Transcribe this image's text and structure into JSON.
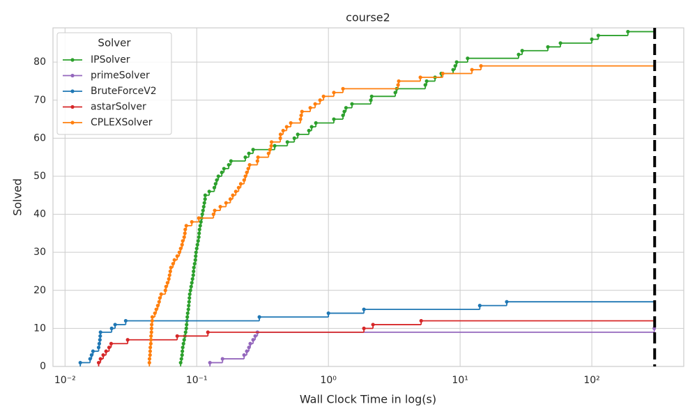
{
  "chart_data": {
    "type": "step",
    "title": "course2",
    "x_label": "Wall Clock Time in log(s)",
    "y_label": "Solved",
    "x_scale": "log",
    "grid": true,
    "legend_title": "Solver",
    "legend_loc": "upper-left",
    "xlim": [
      0.0081,
      499
    ],
    "ylim": [
      0,
      89
    ],
    "xticks": [
      {
        "value": 0.01,
        "label": "10⁻²"
      },
      {
        "value": 0.1,
        "label": "10⁻¹"
      },
      {
        "value": 1,
        "label": "10⁰"
      },
      {
        "value": 10,
        "label": "10¹"
      },
      {
        "value": 100,
        "label": "10²"
      }
    ],
    "yticks": [
      0,
      10,
      20,
      30,
      40,
      50,
      60,
      70,
      80
    ],
    "vline": {
      "x": 300,
      "color": "#000000"
    },
    "series": [
      {
        "name": "IPSolver",
        "color": "#2ca02c",
        "x": [
          0.0755,
          0.0765,
          0.0774,
          0.0778,
          0.0783,
          0.0793,
          0.0803,
          0.0813,
          0.0823,
          0.0833,
          0.0838,
          0.0843,
          0.0848,
          0.0854,
          0.0864,
          0.0869,
          0.0875,
          0.088,
          0.0885,
          0.0896,
          0.0907,
          0.0918,
          0.0929,
          0.0941,
          0.0946,
          0.0952,
          0.0964,
          0.0976,
          0.0982,
          0.0988,
          0.1,
          0.1012,
          0.1025,
          0.1037,
          0.1043,
          0.105,
          0.1063,
          0.1076,
          0.1089,
          0.1102,
          0.1116,
          0.113,
          0.1143,
          0.1157,
          0.116,
          0.1245,
          0.136,
          0.139,
          0.142,
          0.146,
          0.155,
          0.161,
          0.175,
          0.182,
          0.234,
          0.249,
          0.268,
          0.391,
          0.488,
          0.551,
          0.585,
          0.711,
          0.746,
          0.803,
          1.1,
          1.29,
          1.32,
          1.36,
          1.51,
          2.1,
          2.13,
          3.22,
          3.3,
          5.44,
          5.57,
          6.45,
          7.19,
          8.85,
          9.18,
          9.41,
          11.4,
          27.8,
          29.6,
          46.4,
          57.8,
          100,
          112,
          188
        ],
        "values": [
          1,
          2,
          3,
          4,
          5,
          6,
          7,
          8,
          9,
          10,
          11,
          12,
          13,
          14,
          15,
          16,
          17,
          18,
          19,
          20,
          21,
          22,
          23,
          24,
          25,
          26,
          27,
          28,
          29,
          30,
          31,
          32,
          33,
          34,
          35,
          36,
          37,
          38,
          39,
          40,
          41,
          42,
          43,
          44,
          45,
          46,
          47,
          48,
          49,
          50,
          51,
          52,
          53,
          54,
          55,
          56,
          57,
          58,
          59,
          60,
          61,
          62,
          63,
          64,
          65,
          66,
          67,
          68,
          69,
          70,
          71,
          72,
          73,
          74,
          75,
          76,
          77,
          78,
          79,
          80,
          81,
          82,
          83,
          84,
          85,
          86,
          87,
          88
        ]
      },
      {
        "name": "primeSolver",
        "color": "#9467bd",
        "x": [
          0.126,
          0.157,
          0.229,
          0.24,
          0.249,
          0.255,
          0.268,
          0.278,
          0.289,
          298
        ],
        "values": [
          1,
          2,
          3,
          4,
          5,
          6,
          7,
          8,
          9,
          10
        ]
      },
      {
        "name": "BruteForceV2",
        "color": "#1f77b4",
        "x": [
          0.01306,
          0.0155,
          0.0159,
          0.0163,
          0.018,
          0.0182,
          0.0184,
          0.0185,
          0.0186,
          0.0226,
          0.024,
          0.0289,
          0.299,
          1.0,
          1.86,
          14.1,
          22.6
        ],
        "values": [
          1,
          2,
          3,
          4,
          5,
          6,
          7,
          8,
          9,
          10,
          11,
          12,
          13,
          14,
          15,
          16,
          17
        ]
      },
      {
        "name": "astarSolver",
        "color": "#d62728",
        "x": [
          0.018,
          0.0186,
          0.0195,
          0.0205,
          0.0216,
          0.0224,
          0.0299,
          0.0711,
          0.1216,
          1.86,
          2.18,
          5.06
        ],
        "values": [
          1,
          2,
          3,
          4,
          5,
          6,
          7,
          8,
          9,
          10,
          11,
          12
        ]
      },
      {
        "name": "CPLEXSolver",
        "color": "#ff7f0e",
        "x": [
          0.0437,
          0.0438,
          0.0442,
          0.0443,
          0.0444,
          0.0448,
          0.0449,
          0.045,
          0.0453,
          0.0454,
          0.0455,
          0.0459,
          0.046,
          0.0481,
          0.0493,
          0.0506,
          0.0518,
          0.0525,
          0.0537,
          0.0578,
          0.0585,
          0.06,
          0.0614,
          0.0622,
          0.063,
          0.0637,
          0.0661,
          0.0677,
          0.0711,
          0.0738,
          0.0755,
          0.0774,
          0.0783,
          0.0803,
          0.0813,
          0.0818,
          0.0833,
          0.0918,
          0.1037,
          0.134,
          0.137,
          0.151,
          0.167,
          0.18,
          0.188,
          0.198,
          0.208,
          0.216,
          0.229,
          0.234,
          0.24,
          0.246,
          0.252,
          0.289,
          0.292,
          0.351,
          0.36,
          0.368,
          0.37,
          0.431,
          0.433,
          0.453,
          0.482,
          0.518,
          0.614,
          0.621,
          0.63,
          0.728,
          0.793,
          0.864,
          0.918,
          1.1,
          1.29,
          3.38,
          3.42,
          4.99,
          7.38,
          12.3,
          14.4
        ],
        "values": [
          1,
          2,
          3,
          4,
          5,
          6,
          7,
          8,
          9,
          10,
          11,
          12,
          13,
          14,
          15,
          16,
          17,
          18,
          19,
          20,
          21,
          22,
          23,
          24,
          25,
          26,
          27,
          28,
          29,
          30,
          31,
          32,
          33,
          34,
          35,
          36,
          37,
          38,
          39,
          40,
          41,
          42,
          43,
          44,
          45,
          46,
          47,
          48,
          49,
          50,
          51,
          52,
          53,
          54,
          55,
          56,
          57,
          58,
          59,
          60,
          61,
          62,
          63,
          64,
          65,
          66,
          67,
          68,
          69,
          70,
          71,
          72,
          73,
          74,
          75,
          76,
          77,
          78,
          79
        ]
      }
    ]
  }
}
